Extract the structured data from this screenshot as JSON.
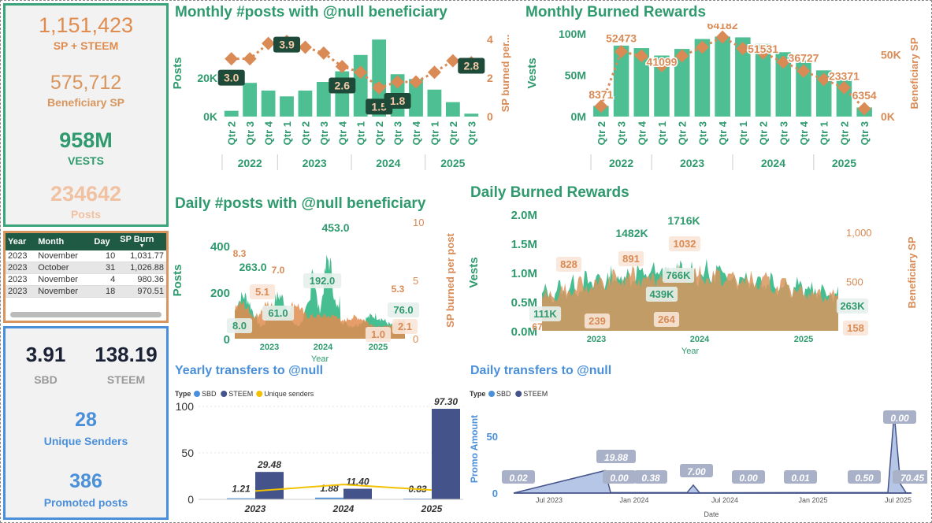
{
  "kpis": {
    "sp_steem_value": "1,151,423",
    "sp_steem_label": "SP + STEEM",
    "beneficiary_value": "575,712",
    "beneficiary_label": "Beneficiary SP",
    "vests_value": "958M",
    "vests_label": "VESTS",
    "posts_value": "234642",
    "posts_label": "Posts",
    "sbd_value": "3.91",
    "sbd_label": "SBD",
    "steem_value": "138.19",
    "steem_label": "STEEM",
    "senders_value": "28",
    "senders_label": "Unique Senders",
    "promoted_value": "386",
    "promoted_label": "Promoted posts"
  },
  "burn_table": {
    "headers": [
      "Year",
      "Month",
      "Day",
      "SP Burn"
    ],
    "rows": [
      [
        "2023",
        "November",
        "10",
        "1,031.77"
      ],
      [
        "2023",
        "October",
        "31",
        "1,026.88"
      ],
      [
        "2023",
        "November",
        "4",
        "980.36"
      ],
      [
        "2023",
        "November",
        "18",
        "970.51"
      ]
    ]
  },
  "colors": {
    "green": "#3dbb8c",
    "dark_green": "#2e9a6e",
    "orange": "#e08c4f",
    "tan": "#d8965e",
    "navy": "#44548a",
    "blue": "#4a8fd9",
    "yellow": "#f2c200"
  },
  "chart_data": [
    {
      "type": "bar",
      "title": "Monthly #posts with @null beneficiary",
      "ylabel": "Posts",
      "y2label": "SP burned per...",
      "categories": [
        "Qtr 2",
        "Qtr 3",
        "Qtr 4",
        "Qtr 1",
        "Qtr 2",
        "Qtr 3",
        "Qtr 4",
        "Qtr 1",
        "Qtr 2",
        "Qtr 3",
        "Qtr 4",
        "Qtr 1",
        "Qtr 2",
        "Qtr 3"
      ],
      "years": [
        "2022",
        "2023",
        "2024",
        "2025"
      ],
      "ytick_labels": [
        "0K",
        "20K"
      ],
      "y2tick_labels": [
        "0",
        "2",
        "4"
      ],
      "ylim": [
        0,
        45000
      ],
      "y2lim": [
        0,
        4.5
      ],
      "series": [
        {
          "name": "Posts",
          "values": [
            3000,
            17500,
            13500,
            10500,
            13500,
            18000,
            23500,
            32000,
            40000,
            22000,
            19500,
            14000,
            7500,
            1500
          ]
        },
        {
          "name": "SP burned per post",
          "values": [
            3.0,
            3.0,
            3.8,
            3.9,
            3.6,
            3.3,
            2.6,
            2.3,
            1.5,
            1.8,
            1.8,
            2.3,
            2.9,
            2.8
          ]
        }
      ],
      "data_labels": [
        {
          "index": 0,
          "text": "3.0"
        },
        {
          "index": 3,
          "text": "3.9"
        },
        {
          "index": 6,
          "text": "2.6"
        },
        {
          "index": 8,
          "text": "1.5"
        },
        {
          "index": 9,
          "text": "1.8"
        },
        {
          "index": 13,
          "text": "2.8"
        }
      ]
    },
    {
      "type": "bar",
      "title": "Monthly Burned Rewards",
      "ylabel": "Vests",
      "y2label": "Beneficiary SP",
      "categories": [
        "Qtr 2",
        "Qtr 3",
        "Qtr 4",
        "Qtr 1",
        "Qtr 2",
        "Qtr 3",
        "Qtr 4",
        "Qtr 1",
        "Qtr 2",
        "Qtr 3",
        "Qtr 4",
        "Qtr 1",
        "Qtr 2",
        "Qtr 3"
      ],
      "years": [
        "2022",
        "2023",
        "2024",
        "2025"
      ],
      "ytick_labels": [
        "0M",
        "50M",
        "100M"
      ],
      "y2tick_labels": [
        "0K",
        "50K"
      ],
      "ylim": [
        0,
        105000000
      ],
      "y2lim": [
        0,
        70000
      ],
      "series": [
        {
          "name": "Vests",
          "values": [
            13000000,
            86000000,
            83000000,
            74000000,
            82000000,
            94000000,
            97000000,
            96000000,
            88000000,
            78000000,
            68000000,
            56000000,
            46000000,
            11000000
          ]
        },
        {
          "name": "Beneficiary SP",
          "values": [
            8371,
            52473,
            49000,
            41099,
            49000,
            56000,
            64182,
            55000,
            51531,
            44000,
            36727,
            30000,
            23371,
            6354
          ]
        }
      ],
      "data_labels": [
        {
          "index": 0,
          "text": "8371"
        },
        {
          "index": 1,
          "text": "52473"
        },
        {
          "index": 3,
          "text": "41099"
        },
        {
          "index": 6,
          "text": "64182"
        },
        {
          "index": 8,
          "text": "51531"
        },
        {
          "index": 10,
          "text": "36727"
        },
        {
          "index": 12,
          "text": "23371"
        },
        {
          "index": 13,
          "text": "6354"
        }
      ]
    },
    {
      "type": "area",
      "title": "Daily #posts with @null beneficiary",
      "xlabel": "Year",
      "ylabel": "Posts",
      "y2label": "SP burned per post",
      "xticks": [
        "2023",
        "2024",
        "2025"
      ],
      "ytick_labels": [
        "0",
        "200",
        "400"
      ],
      "y2tick_labels": [
        "0",
        "5",
        "10"
      ],
      "ylim": [
        0,
        480
      ],
      "y2lim": [
        0,
        10
      ],
      "annotations": [
        "8.3",
        "263.0",
        "7.0",
        "5.1",
        "453.0",
        "192.0",
        "61.0",
        "8.0",
        "5.3",
        "76.0",
        "2.1",
        "1.0"
      ]
    },
    {
      "type": "area",
      "title": "Daily Burned Rewards",
      "xlabel": "Year",
      "ylabel": "Vests",
      "y2label": "Beneficiary SP",
      "xticks": [
        "2023",
        "2024",
        "2025"
      ],
      "ytick_labels": [
        "0.0M",
        "0.5M",
        "1.0M",
        "1.5M",
        "2.0M"
      ],
      "y2tick_labels": [
        "0",
        "500",
        "1,000"
      ],
      "ylim": [
        0,
        2000000
      ],
      "y2lim": [
        0,
        1200
      ],
      "annotations": [
        "1482K",
        "1716K",
        "828",
        "891",
        "1032",
        "766K",
        "439K",
        "111K",
        "67",
        "239",
        "264",
        "263K",
        "158"
      ]
    },
    {
      "type": "bar",
      "title": "Yearly transfers to @null",
      "legend_title": "Type",
      "legend": [
        "SBD",
        "STEEM",
        "Unique senders"
      ],
      "categories": [
        "2023",
        "2024",
        "2025"
      ],
      "ytick_labels": [
        "0",
        "50",
        "100"
      ],
      "ylim": [
        0,
        110
      ],
      "series": [
        {
          "name": "SBD",
          "values": [
            1.21,
            1.88,
            0.83
          ]
        },
        {
          "name": "STEEM",
          "values": [
            29.48,
            11.4,
            97.3
          ]
        },
        {
          "name": "Unique senders",
          "values": [
            9,
            16,
            10
          ]
        }
      ],
      "value_labels": {
        "sbd": [
          "1.21",
          "1.88",
          "0.83"
        ],
        "steem": [
          "29.48",
          "11.40",
          "97.30"
        ]
      }
    },
    {
      "type": "area",
      "title": "Daily transfers to @null",
      "legend_title": "Type",
      "legend": [
        "SBD",
        "STEEM"
      ],
      "xlabel": "Date",
      "ylabel": "Promo Amount",
      "xticks": [
        "Jul 2023",
        "Jan 2024",
        "Jul 2024",
        "Jan 2025",
        "Jul 2025"
      ],
      "ytick_labels": [
        "0",
        "50"
      ],
      "ylim": [
        0,
        85
      ],
      "annotations": [
        "0.02",
        "19.88",
        "0.00",
        "0.38",
        "7.00",
        "0.00",
        "0.01",
        "0.50",
        "0.00",
        "70.45"
      ]
    }
  ]
}
